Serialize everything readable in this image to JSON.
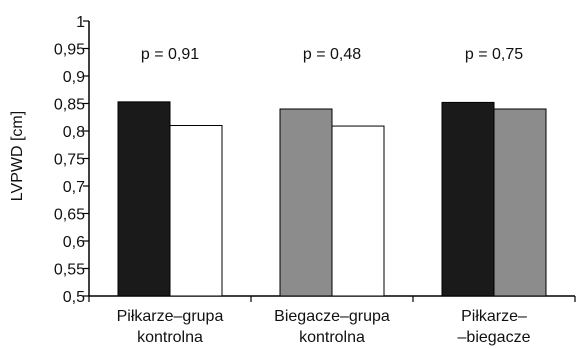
{
  "chart_data": {
    "type": "bar",
    "ylabel": "LVPWD [cm]",
    "xlabel": "",
    "title": "",
    "ylim": [
      0.5,
      1
    ],
    "yticks": [
      "0,5",
      "0,55",
      "0,6",
      "0,65",
      "0,7",
      "0,75",
      "0,8",
      "0,85",
      "0,9",
      "0,95",
      "1"
    ],
    "grid": false,
    "legend": "none",
    "groups": [
      {
        "label_lines": [
          "Piłkarze–grupa",
          "kontrolna"
        ],
        "annotation": "p = 0,91",
        "bars": [
          {
            "value": 0.853,
            "color": "#1a1a1a"
          },
          {
            "value": 0.81,
            "color": "#ffffff"
          }
        ]
      },
      {
        "label_lines": [
          "Biegacze–grupa",
          "kontrolna"
        ],
        "annotation": "p = 0,48",
        "bars": [
          {
            "value": 0.84,
            "color": "#8c8c8c"
          },
          {
            "value": 0.809,
            "color": "#ffffff"
          }
        ]
      },
      {
        "label_lines": [
          "Piłkarze–",
          "–biegacze"
        ],
        "annotation": "p = 0,75",
        "bars": [
          {
            "value": 0.852,
            "color": "#1a1a1a"
          },
          {
            "value": 0.84,
            "color": "#8c8c8c"
          }
        ]
      }
    ]
  }
}
